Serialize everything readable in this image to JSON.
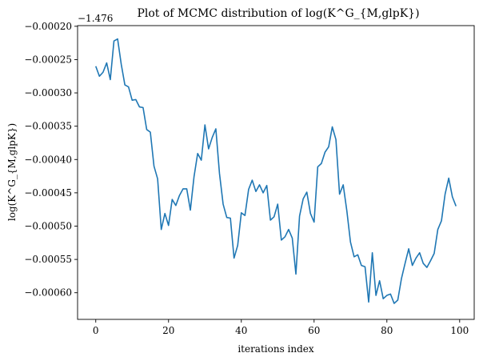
{
  "chart_data": {
    "type": "line",
    "title": "Plot of MCMC distribution of log(K^G_{M,glpK})",
    "xlabel": "iterations index",
    "ylabel": "log(K^G_{M,glpK})",
    "y_offset_text": "−1.476",
    "xlim": [
      -5,
      104
    ],
    "ylim": [
      -0.00064,
      -0.000199
    ],
    "x_ticks": [
      0,
      20,
      40,
      60,
      80,
      100
    ],
    "y_ticks": [
      -0.0002,
      -0.00025,
      -0.0003,
      -0.00035,
      -0.0004,
      -0.00045,
      -0.0005,
      -0.00055,
      -0.0006
    ],
    "y_tick_labels": [
      "−0.00020",
      "−0.00025",
      "−0.00030",
      "−0.00035",
      "−0.00040",
      "−0.00045",
      "−0.00050",
      "−0.00055",
      "−0.00060"
    ],
    "grid": false,
    "series": [
      {
        "color": "#1f77b4",
        "x": [
          0,
          1,
          2,
          3,
          4,
          5,
          6,
          7,
          8,
          9,
          10,
          11,
          12,
          13,
          14,
          15,
          16,
          17,
          18,
          19,
          20,
          21,
          22,
          23,
          24,
          25,
          26,
          27,
          28,
          29,
          30,
          31,
          32,
          33,
          34,
          35,
          36,
          37,
          38,
          39,
          40,
          41,
          42,
          43,
          44,
          45,
          46,
          47,
          48,
          49,
          50,
          51,
          52,
          53,
          54,
          55,
          56,
          57,
          58,
          59,
          60,
          61,
          62,
          63,
          64,
          65,
          66,
          67,
          68,
          69,
          70,
          71,
          72,
          73,
          74,
          75,
          76,
          77,
          78,
          79,
          80,
          81,
          82,
          83,
          84,
          85,
          86,
          87,
          88,
          89,
          90,
          91,
          92,
          93,
          94,
          95,
          96,
          97,
          98,
          99
        ],
        "values": [
          -0.00026,
          -0.000275,
          -0.000269,
          -0.000255,
          -0.00028,
          -0.000222,
          -0.000219,
          -0.000257,
          -0.000288,
          -0.000291,
          -0.000311,
          -0.00031,
          -0.000321,
          -0.000322,
          -0.000355,
          -0.000359,
          -0.00041,
          -0.000429,
          -0.000505,
          -0.000481,
          -0.000499,
          -0.00046,
          -0.000469,
          -0.000454,
          -0.000444,
          -0.000444,
          -0.000476,
          -0.000426,
          -0.000391,
          -0.000401,
          -0.000348,
          -0.000384,
          -0.000367,
          -0.000354,
          -0.000421,
          -0.000467,
          -0.000487,
          -0.000488,
          -0.000548,
          -0.000529,
          -0.00048,
          -0.000484,
          -0.000445,
          -0.000431,
          -0.000448,
          -0.000438,
          -0.00045,
          -0.000439,
          -0.000491,
          -0.000486,
          -0.000467,
          -0.000521,
          -0.000516,
          -0.000505,
          -0.000518,
          -0.000572,
          -0.000485,
          -0.000459,
          -0.000449,
          -0.000481,
          -0.000494,
          -0.000411,
          -0.000406,
          -0.000389,
          -0.000381,
          -0.000351,
          -0.00037,
          -0.000452,
          -0.000438,
          -0.000477,
          -0.000524,
          -0.000546,
          -0.000543,
          -0.000559,
          -0.000561,
          -0.000614,
          -0.00054,
          -0.000604,
          -0.000582,
          -0.000609,
          -0.000604,
          -0.000602,
          -0.000616,
          -0.000611,
          -0.000579,
          -0.000556,
          -0.000534,
          -0.000559,
          -0.000548,
          -0.00054,
          -0.000556,
          -0.000562,
          -0.000552,
          -0.000541,
          -0.000505,
          -0.000492,
          -0.000452,
          -0.000428,
          -0.000456,
          -0.00047
        ]
      }
    ]
  }
}
